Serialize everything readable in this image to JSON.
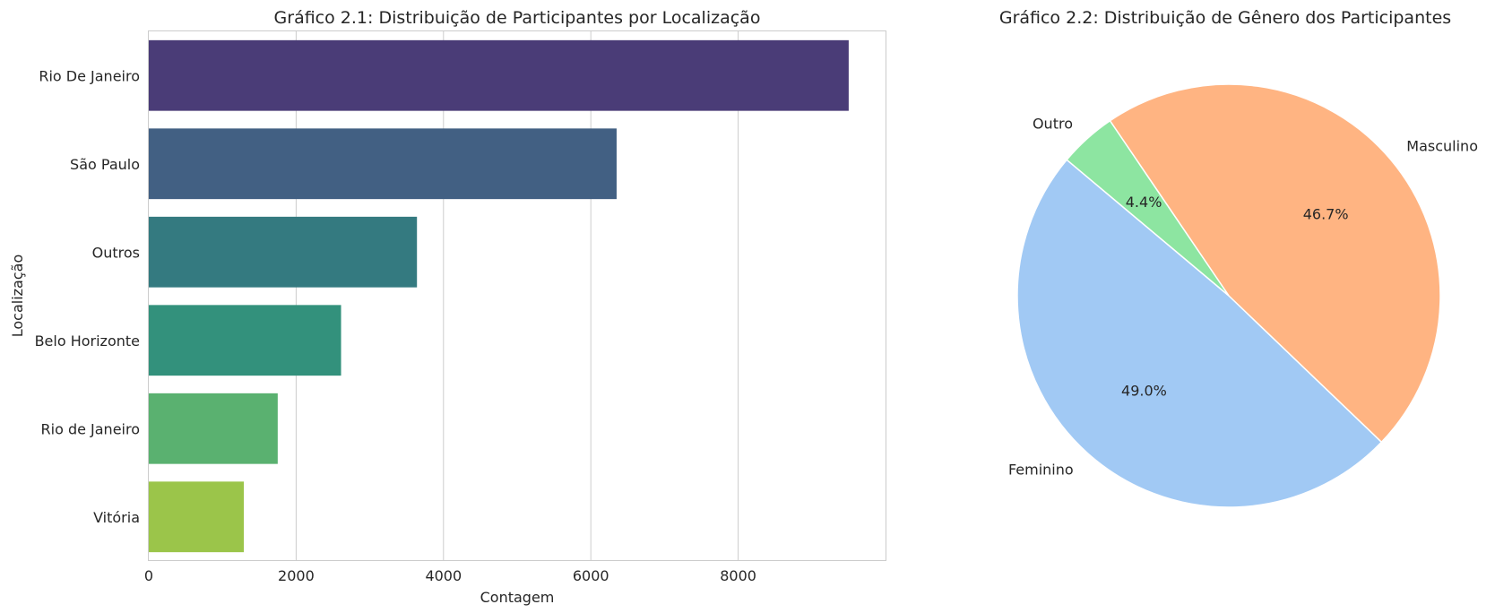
{
  "chart_data": [
    {
      "type": "bar",
      "orientation": "horizontal",
      "title": "Gráfico 2.1: Distribuição de Participantes por Localização",
      "xlabel": "Contagem",
      "ylabel": "Localização",
      "xlim": [
        0,
        10000
      ],
      "xticks": [
        0,
        2000,
        4000,
        6000,
        8000
      ],
      "categories": [
        "Rio De Janeiro",
        "São Paulo",
        "Outros",
        "Belo Horizonte",
        "Rio de Janeiro",
        "Vitória"
      ],
      "values": [
        9500,
        6350,
        3640,
        2610,
        1750,
        1290
      ],
      "colors": [
        "#4a3c77",
        "#426083",
        "#347a80",
        "#33917c",
        "#5ab170",
        "#9bc54a"
      ],
      "grid": "vertical",
      "legend": "none"
    },
    {
      "type": "pie",
      "title": "Gráfico 2.2: Distribuição de Gênero dos Participantes",
      "start_angle_deg": 140,
      "direction": "counterclockwise",
      "slices": [
        {
          "label": "Feminino",
          "value": 49.0,
          "pct_label": "49.0%",
          "color": "#a1c9f4"
        },
        {
          "label": "Masculino",
          "value": 46.7,
          "pct_label": "46.7%",
          "color": "#ffb482"
        },
        {
          "label": "Outro",
          "value": 4.4,
          "pct_label": "4.4%",
          "color": "#8de5a1"
        }
      ],
      "legend": "none"
    }
  ]
}
